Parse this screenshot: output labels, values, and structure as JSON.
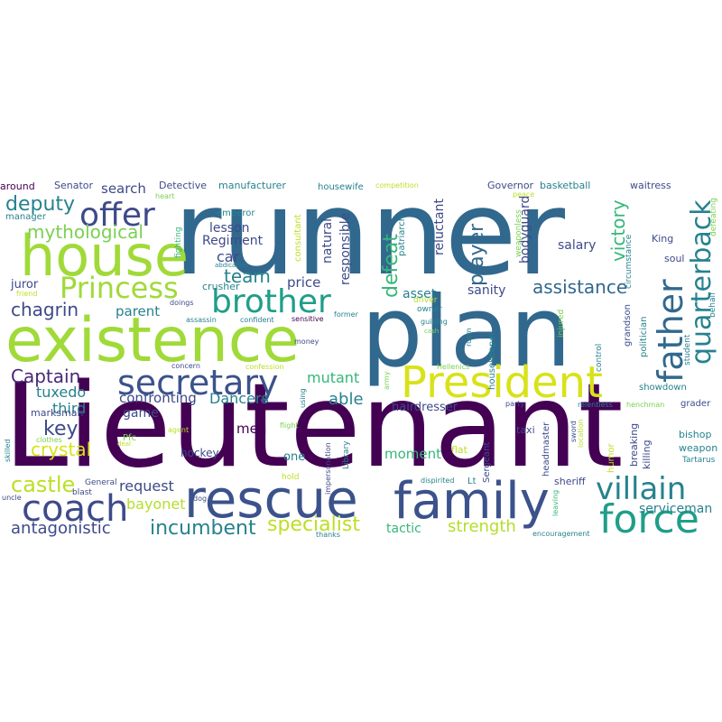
{
  "word_cloud": {
    "words": [
      {
        "text": "Lieutenant",
        "color": "#440154"
      },
      {
        "text": "runner",
        "color": "#31688e"
      },
      {
        "text": "plan",
        "color": "#31688e"
      },
      {
        "text": "existence",
        "color": "#a0da39"
      },
      {
        "text": "house",
        "color": "#a0da39"
      },
      {
        "text": "rescue",
        "color": "#3b528b"
      },
      {
        "text": "family",
        "color": "#3b528b"
      },
      {
        "text": "President",
        "color": "#d8e219"
      },
      {
        "text": "force",
        "color": "#1f9e89"
      },
      {
        "text": "coach",
        "color": "#3e4a89"
      },
      {
        "text": "secretary",
        "color": "#3b528b"
      },
      {
        "text": "villain",
        "color": "#26828e"
      },
      {
        "text": "brother",
        "color": "#1f9e89"
      },
      {
        "text": "Princess",
        "color": "#a0da39"
      },
      {
        "text": "offer",
        "color": "#3e4a89"
      },
      {
        "text": "father",
        "color": "#31688e"
      },
      {
        "text": "quarterback",
        "color": "#26828e"
      },
      {
        "text": "specialist",
        "color": "#bddf26"
      },
      {
        "text": "incumbent",
        "color": "#26828e"
      },
      {
        "text": "castle",
        "color": "#bddf26"
      },
      {
        "text": "antagonistic",
        "color": "#3e4a89"
      },
      {
        "text": "strength",
        "color": "#b5de2b"
      },
      {
        "text": "assistance",
        "color": "#31688e"
      },
      {
        "text": "deputy",
        "color": "#26828e"
      },
      {
        "text": "mythological",
        "color": "#7ad151"
      },
      {
        "text": "chagrin",
        "color": "#3e4a89"
      },
      {
        "text": "Captain",
        "color": "#482878"
      },
      {
        "text": "crystal",
        "color": "#d8e219"
      },
      {
        "text": "key",
        "color": "#3e4a89"
      },
      {
        "text": "player",
        "color": "#31688e"
      },
      {
        "text": "defeat",
        "color": "#35b779"
      },
      {
        "text": "victory",
        "color": "#35b779"
      },
      {
        "text": "team",
        "color": "#26828e"
      },
      {
        "text": "bayonet",
        "color": "#b5de2b"
      },
      {
        "text": "request",
        "color": "#3e4a89"
      },
      {
        "text": "mutant",
        "color": "#35b779"
      },
      {
        "text": "able",
        "color": "#26828e"
      },
      {
        "text": "Dancers",
        "color": "#26828e"
      },
      {
        "text": "confronting",
        "color": "#3e4a89"
      },
      {
        "text": "tuxedo",
        "color": "#26828e"
      },
      {
        "text": "third",
        "color": "#26828e"
      },
      {
        "text": "car",
        "color": "#3e4a89"
      },
      {
        "text": "lesson",
        "color": "#3e4a89"
      },
      {
        "text": "Regiment",
        "color": "#3e4a89"
      },
      {
        "text": "search",
        "color": "#3e4a89"
      },
      {
        "text": "parent",
        "color": "#26828e"
      },
      {
        "text": "price",
        "color": "#3e4a89"
      },
      {
        "text": "responsible",
        "color": "#3e4a89"
      },
      {
        "text": "natural",
        "color": "#3e4a89"
      },
      {
        "text": "reluctant",
        "color": "#3e4a89"
      },
      {
        "text": "bodyguard",
        "color": "#3e4a89"
      },
      {
        "text": "salary",
        "color": "#3e4a89"
      },
      {
        "text": "asset",
        "color": "#26828e"
      },
      {
        "text": "sanity",
        "color": "#3e4a89"
      },
      {
        "text": "moment",
        "color": "#35b779"
      },
      {
        "text": "hairdresser",
        "color": "#3e4a89"
      },
      {
        "text": "tactic",
        "color": "#35b779"
      },
      {
        "text": "serviceman",
        "color": "#26828e"
      },
      {
        "text": "men",
        "color": "#440154"
      },
      {
        "text": "game",
        "color": "#3e4a89"
      },
      {
        "text": "hockey",
        "color": "#3e4a89"
      },
      {
        "text": "one",
        "color": "#26828e"
      },
      {
        "text": "juror",
        "color": "#3e4a89"
      },
      {
        "text": "marksman",
        "color": "#3e4a89"
      },
      {
        "text": "Senator",
        "color": "#3e4a89"
      },
      {
        "text": "Detective",
        "color": "#3e4a89"
      },
      {
        "text": "manufacturer",
        "color": "#26828e"
      },
      {
        "text": "housewife",
        "color": "#26828e"
      },
      {
        "text": "Governor",
        "color": "#3e4a89"
      },
      {
        "text": "basketball",
        "color": "#26828e"
      },
      {
        "text": "waitress",
        "color": "#3e4a89"
      },
      {
        "text": "around",
        "color": "#440154"
      },
      {
        "text": "manager",
        "color": "#26828e"
      },
      {
        "text": "competition",
        "color": "#bddf26"
      },
      {
        "text": "heart",
        "color": "#7ad151"
      },
      {
        "text": "emperor",
        "color": "#26828e"
      },
      {
        "text": "peace",
        "color": "#bddf26"
      },
      {
        "text": "defeating",
        "color": "#7ad151"
      },
      {
        "text": "King",
        "color": "#3e4a89"
      },
      {
        "text": "soul",
        "color": "#3e4a89"
      },
      {
        "text": "behalf",
        "color": "#26828e"
      },
      {
        "text": "friend",
        "color": "#bddf26"
      },
      {
        "text": "doings",
        "color": "#3e4a89"
      },
      {
        "text": "crusher",
        "color": "#26828e"
      },
      {
        "text": "abdication",
        "color": "#26828e"
      },
      {
        "text": "assassin",
        "color": "#26828e"
      },
      {
        "text": "confident",
        "color": "#26828e"
      },
      {
        "text": "sensitive",
        "color": "#440154"
      },
      {
        "text": "former",
        "color": "#26828e"
      },
      {
        "text": "fighting",
        "color": "#35b779"
      },
      {
        "text": "consultant",
        "color": "#bddf26"
      },
      {
        "text": "patriarch",
        "color": "#26828e"
      },
      {
        "text": "weaponless",
        "color": "#7ad151"
      },
      {
        "text": "circumstance",
        "color": "#26828e"
      },
      {
        "text": "owner",
        "color": "#26828e"
      },
      {
        "text": "driver",
        "color": "#b5de2b"
      },
      {
        "text": "guiding",
        "color": "#26828e"
      },
      {
        "text": "cash",
        "color": "#7ad151"
      },
      {
        "text": "injured",
        "color": "#7ad151"
      },
      {
        "text": "room",
        "color": "#26828e"
      },
      {
        "text": "grandson",
        "color": "#3e4a89"
      },
      {
        "text": "politician",
        "color": "#26828e"
      },
      {
        "text": "student",
        "color": "#26828e"
      },
      {
        "text": "money",
        "color": "#3e4a89"
      },
      {
        "text": "concern",
        "color": "#3e4a89"
      },
      {
        "text": "confession",
        "color": "#bddf26"
      },
      {
        "text": "using",
        "color": "#26828e"
      },
      {
        "text": "army",
        "color": "#7ad151"
      },
      {
        "text": "Hellenics",
        "color": "#7ad151"
      },
      {
        "text": "housekeeper",
        "color": "#26828e"
      },
      {
        "text": "control",
        "color": "#26828e"
      },
      {
        "text": "showdown",
        "color": "#26828e"
      },
      {
        "text": "grader",
        "color": "#3e4a89"
      },
      {
        "text": "party",
        "color": "#3e4a89"
      },
      {
        "text": "relentless",
        "color": "#26828e"
      },
      {
        "text": "henchman",
        "color": "#7ad151"
      },
      {
        "text": "taxi",
        "color": "#3e4a89"
      },
      {
        "text": "bishop",
        "color": "#26828e"
      },
      {
        "text": "weapon",
        "color": "#26828e"
      },
      {
        "text": "Tartarus",
        "color": "#26828e"
      },
      {
        "text": "agent",
        "color": "#bddf26"
      },
      {
        "text": "flight",
        "color": "#7ad151"
      },
      {
        "text": "clothes",
        "color": "#7ad151"
      },
      {
        "text": "Pfc",
        "color": "#7ad151"
      },
      {
        "text": "deal",
        "color": "#bddf26"
      },
      {
        "text": "skilled",
        "color": "#26828e"
      },
      {
        "text": "uncle",
        "color": "#3e4a89"
      },
      {
        "text": "General",
        "color": "#3e4a89"
      },
      {
        "text": "blast",
        "color": "#3e4a89"
      },
      {
        "text": "dog",
        "color": "#3e4a89"
      },
      {
        "text": "hold",
        "color": "#bddf26"
      },
      {
        "text": "impersonation",
        "color": "#3e4a89"
      },
      {
        "text": "Library",
        "color": "#26828e"
      },
      {
        "text": "flat",
        "color": "#bddf26"
      },
      {
        "text": "dispirited",
        "color": "#26828e"
      },
      {
        "text": "Lt",
        "color": "#26828e"
      },
      {
        "text": "Sergeant",
        "color": "#3e4a89"
      },
      {
        "text": "killing",
        "color": "#3e4a89"
      },
      {
        "text": "breaking",
        "color": "#3e4a89"
      },
      {
        "text": "headmaster",
        "color": "#3e4a89"
      },
      {
        "text": "sheriff",
        "color": "#3e4a89"
      },
      {
        "text": "leaving",
        "color": "#35b779"
      },
      {
        "text": "humor",
        "color": "#bddf26"
      },
      {
        "text": "sword",
        "color": "#3e4a89"
      },
      {
        "text": "location",
        "color": "#b5de2b"
      },
      {
        "text": "thanks",
        "color": "#26828e"
      },
      {
        "text": "encouragement",
        "color": "#26828e"
      }
    ]
  }
}
